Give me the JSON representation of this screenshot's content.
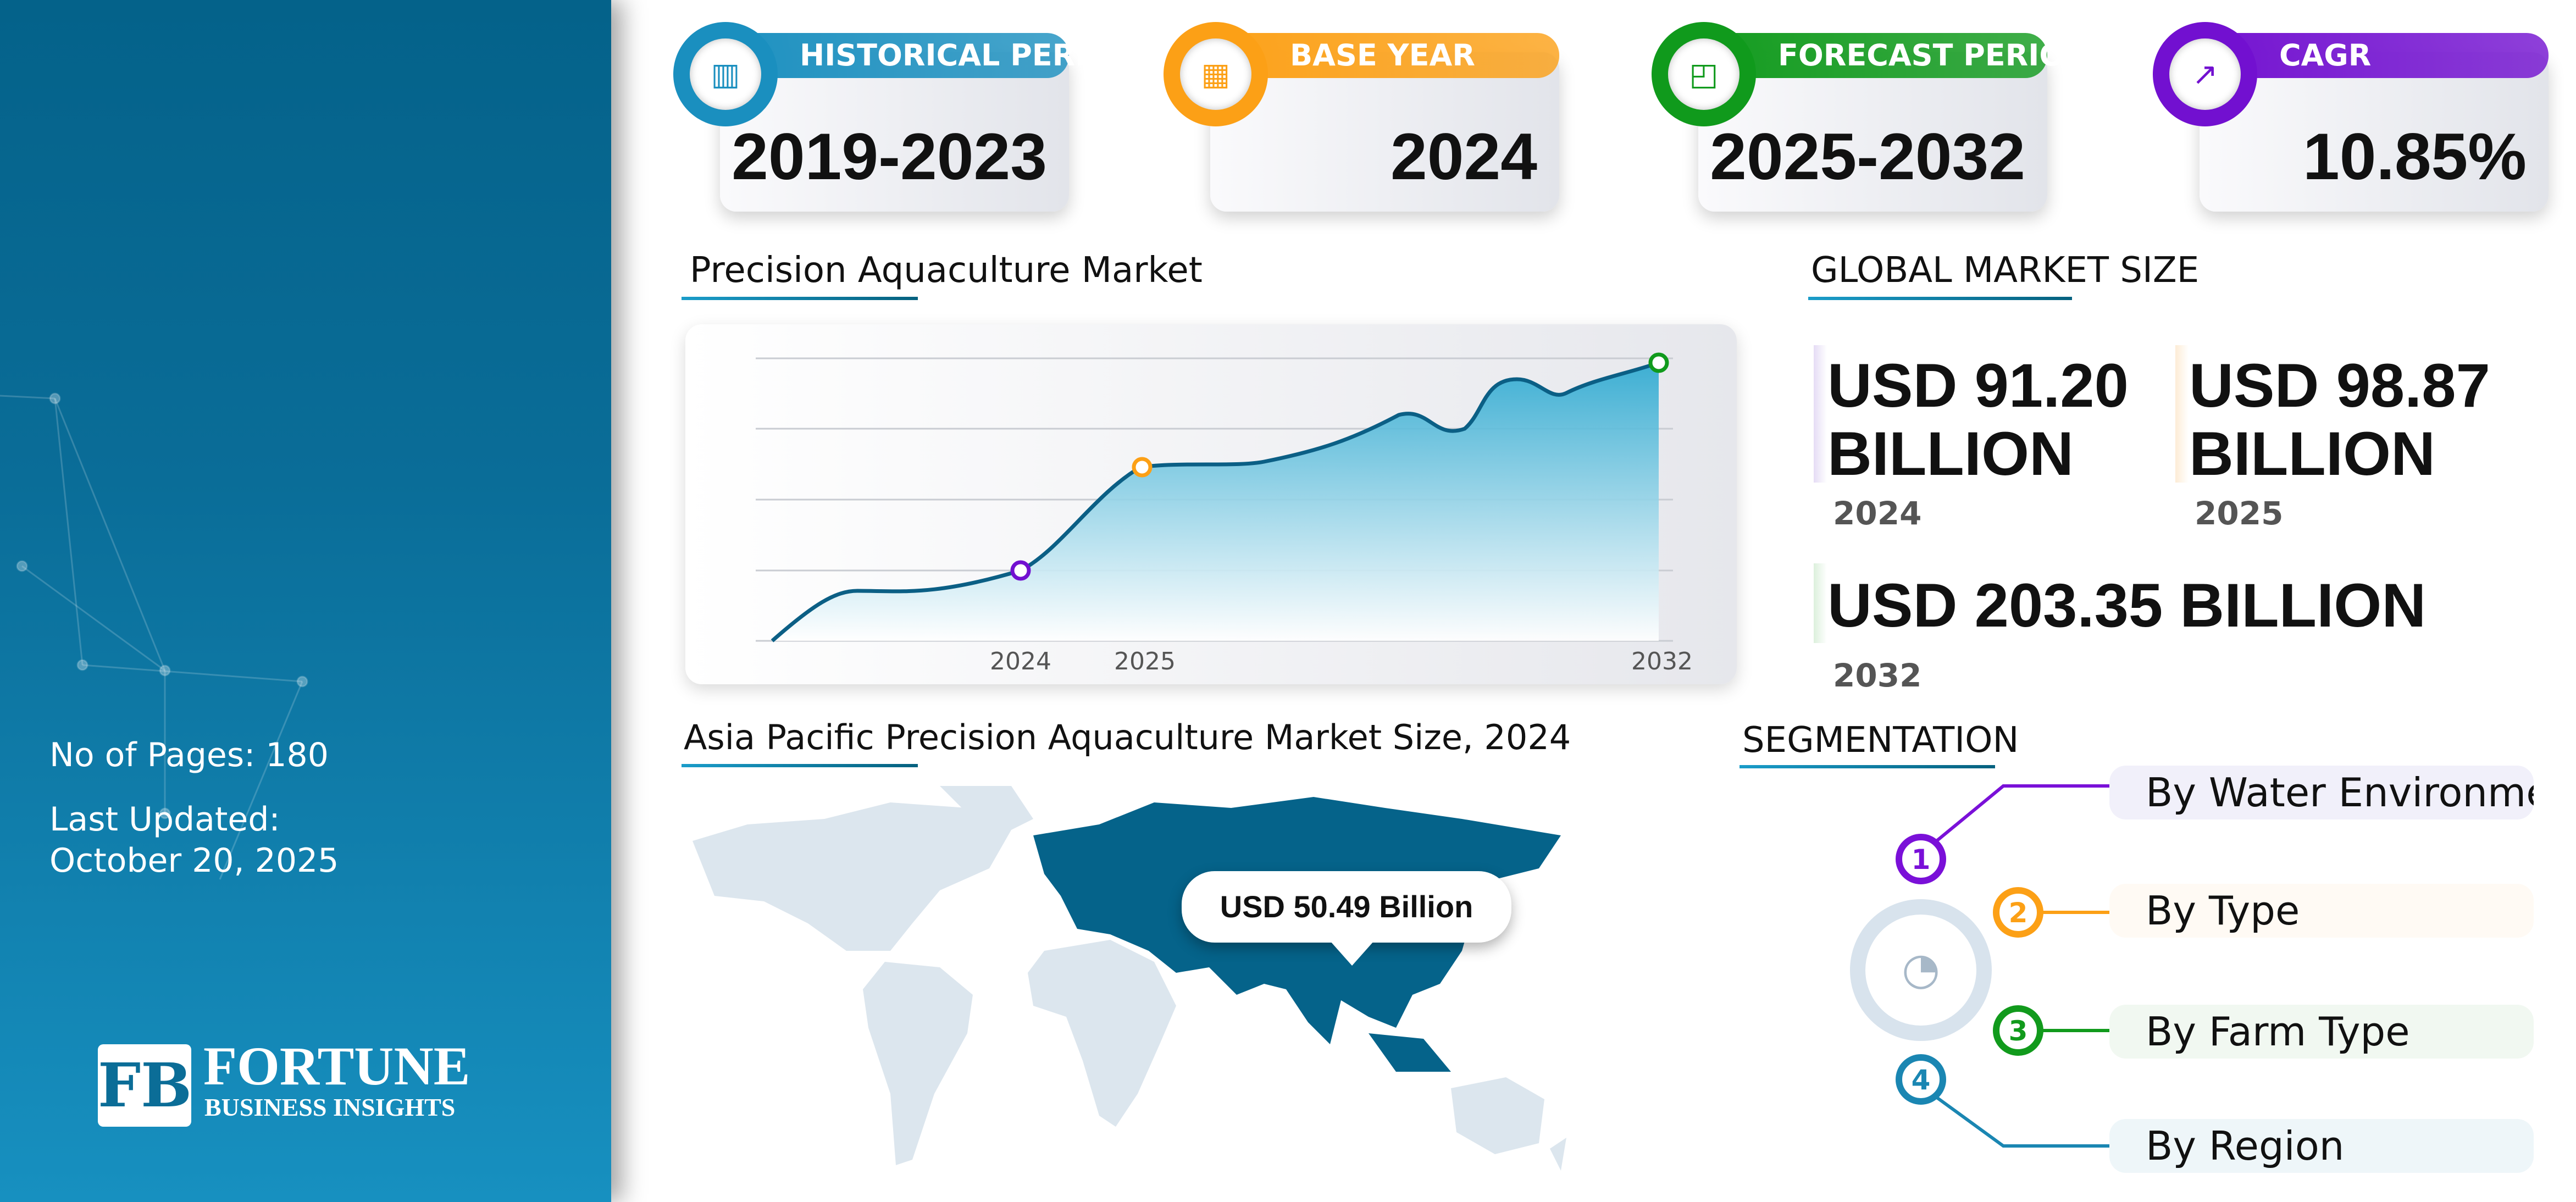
{
  "sidebar": {
    "pages": "No of Pages: 180",
    "updated_label": "Last Updated:",
    "updated_date": "October 20, 2025",
    "logo_top": "FORTUNE",
    "logo_bottom": "BUSINESS INSIGHTS"
  },
  "cards": [
    {
      "label": "HISTORICAL PERIOD",
      "value": "2019-2023",
      "icon": "bar-chart-icon",
      "color": "#1a8fbf"
    },
    {
      "label": "BASE YEAR",
      "value": "2024",
      "icon": "calendar-icon",
      "color": "#fca016"
    },
    {
      "label": "FORECAST PERIOD",
      "value": "2025-2032",
      "icon": "forecast-chart-icon",
      "color": "#109a1c"
    },
    {
      "label": "CAGR",
      "value": "10.85%",
      "icon": "growth-chart-icon",
      "color": "#7210d0"
    }
  ],
  "chart": {
    "title": "Precision Aquaculture Market"
  },
  "chart_data": {
    "type": "area",
    "categories": [
      "2024",
      "2025",
      "2032"
    ],
    "markers": [
      {
        "x": "2024",
        "color": "#7210d0"
      },
      {
        "x": "2025",
        "color": "#fca016"
      },
      {
        "x": "2032",
        "color": "#109a1c"
      }
    ],
    "grid": true,
    "fill_color": "#2aa8d0",
    "line_color": "#0b5f85"
  },
  "market": {
    "title": "GLOBAL MARKET SIZE",
    "items": [
      {
        "value_line1": "USD 91.20",
        "value_line2": "BILLION",
        "year": "2024",
        "color": "#e5dcf5"
      },
      {
        "value_line1": "USD 98.87",
        "value_line2": "BILLION",
        "year": "2025",
        "color": "#fdecd5"
      },
      {
        "value": "USD 203.35 BILLION",
        "year": "2032",
        "color": "#dcf0dc"
      }
    ]
  },
  "map": {
    "title": "Asia Pacific Precision Aquaculture Market Size, 2024",
    "callout": "USD 50.49 Billion",
    "highlight_color": "#05638a",
    "base_color": "#dce6ee"
  },
  "segmentation": {
    "title": "SEGMENTATION",
    "items": [
      {
        "num": "1",
        "label": "By Water Environment",
        "color": "#7a10d8",
        "bg": "#f1f0fa"
      },
      {
        "num": "2",
        "label": "By Type",
        "color": "#fca016",
        "bg": "#fffaf4"
      },
      {
        "num": "3",
        "label": "By Farm Type",
        "color": "#119a1c",
        "bg": "#f1f8f1"
      },
      {
        "num": "4",
        "label": "By Region",
        "color": "#1a86b2",
        "bg": "#eef6f9"
      }
    ]
  }
}
